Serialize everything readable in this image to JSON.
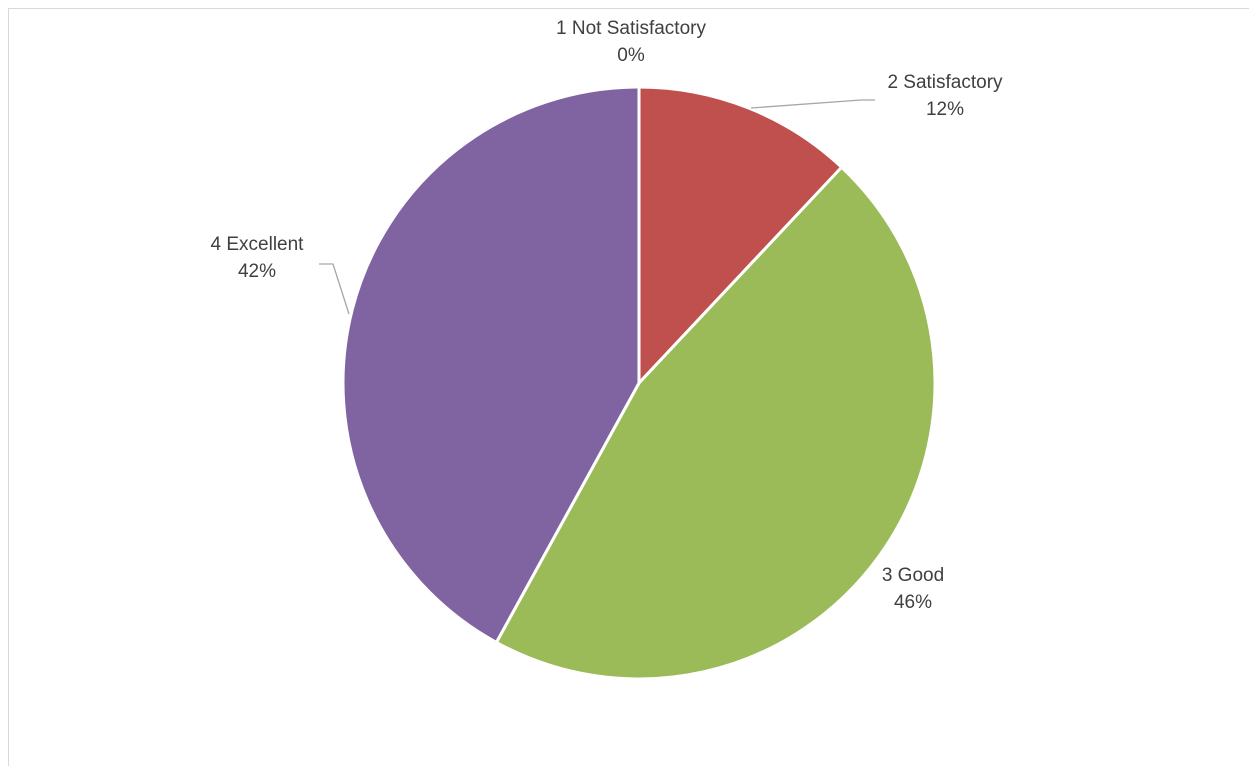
{
  "chart_data": {
    "type": "pie",
    "title": "",
    "categories": [
      "1 Not Satisfactory",
      "2 Satisfactory",
      "3 Good",
      "4 Excellent"
    ],
    "values": [
      0,
      12,
      46,
      42
    ],
    "labels": [
      "0%",
      "12%",
      "46%",
      "42%"
    ],
    "colors": [
      "#4f81bd",
      "#c0504d",
      "#9bbb59",
      "#8064a2"
    ],
    "legend": "none"
  }
}
